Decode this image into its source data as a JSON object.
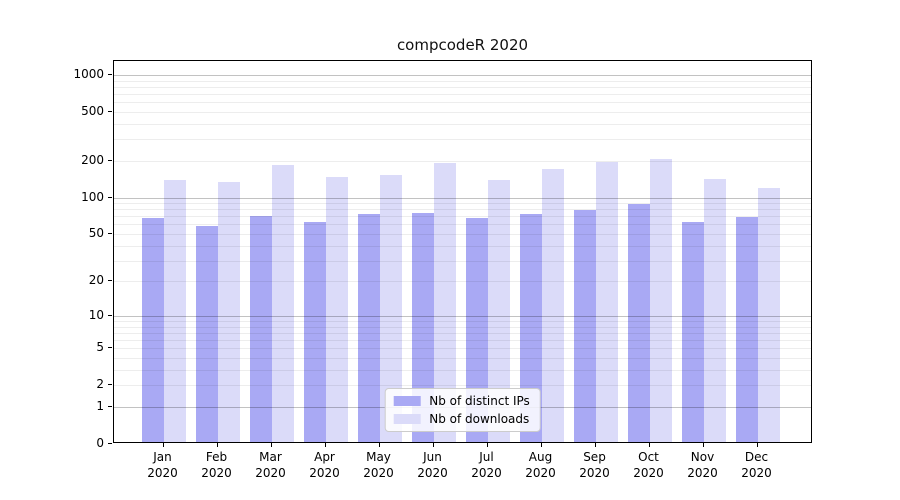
{
  "chart_data": {
    "type": "bar",
    "title": "compcodeR 2020",
    "categories": [
      "Jan 2020",
      "Feb 2020",
      "Mar 2020",
      "Apr 2020",
      "May 2020",
      "Jun 2020",
      "Jul 2020",
      "Aug 2020",
      "Sep 2020",
      "Oct 2020",
      "Nov 2020",
      "Dec 2020"
    ],
    "series": [
      {
        "name": "Nb of distinct IPs",
        "color": "#a9a9f4",
        "values": [
          65,
          56,
          68,
          61,
          71,
          72,
          65,
          70,
          76,
          85,
          60,
          67
        ]
      },
      {
        "name": "Nb of downloads",
        "color": "#dbdbf9",
        "values": [
          135,
          130,
          179,
          142,
          147,
          186,
          135,
          166,
          190,
          200,
          137,
          116
        ]
      }
    ],
    "yscale": "log1p",
    "ylim": [
      0,
      1300
    ],
    "yticks": [
      0,
      1,
      2,
      5,
      10,
      20,
      50,
      100,
      200,
      500,
      1000
    ],
    "grid": {
      "major": [
        1,
        10,
        100,
        1000
      ],
      "minor": [
        2,
        3,
        4,
        5,
        6,
        7,
        8,
        9,
        20,
        30,
        40,
        50,
        60,
        70,
        80,
        90,
        200,
        300,
        400,
        500,
        600,
        700,
        800,
        900
      ]
    },
    "legend": {
      "position": "lower center",
      "entries": [
        "Nb of distinct IPs",
        "Nb of downloads"
      ]
    },
    "xlabel": "",
    "ylabel": "",
    "grid_on": true
  },
  "colors": {
    "bar_distinct_ips": "#a9a9f4",
    "bar_downloads": "#dbdbf9",
    "major_grid": "rgba(0,0,0,0.24)",
    "minor_grid": "rgba(0,0,0,0.07)",
    "spine": "#000000",
    "text": "#111111"
  }
}
